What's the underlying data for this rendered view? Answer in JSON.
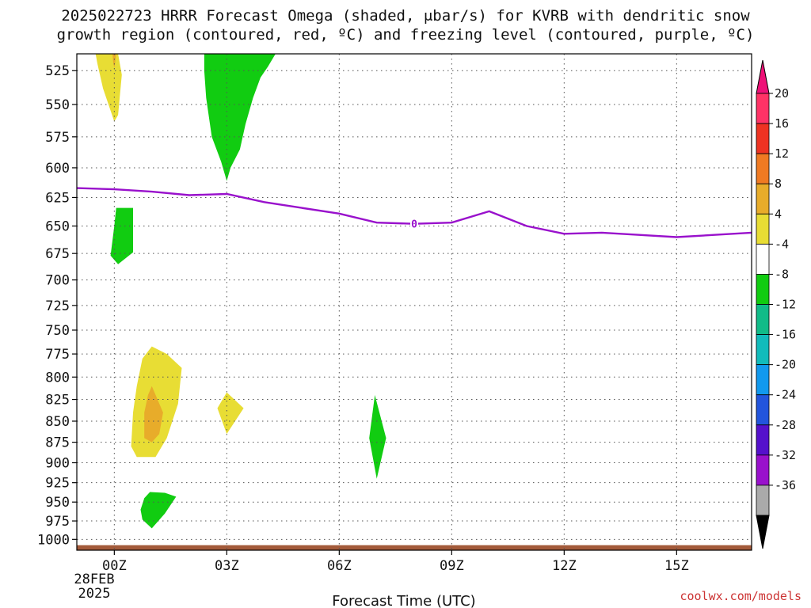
{
  "title": {
    "line1": "2025022723 HRRR Forecast Omega (shaded, μbar/s) for KVRB with dendritic snow",
    "line2": "growth region (contoured, red, ºC) and freezing level (contoured, purple, ºC)"
  },
  "xlabel": "Forecast Time (UTC)",
  "credit": "coolwx.com/models",
  "date_label": {
    "day": "28FEB",
    "year": "2025"
  },
  "chart_data": {
    "type": "heatmap",
    "title": "2025022723 HRRR Forecast Omega (shaded, μbar/s) for KVRB with dendritic snow growth region (contoured, red, ºC) and freezing level (contoured, purple, ºC)",
    "xlabel": "Forecast Time (UTC)",
    "ylabel": "",
    "x_unit": "forecast hour from 00Z 28FEB2025",
    "xlim": [
      -1,
      17
    ],
    "ylim_hPa": [
      1015,
      513
    ],
    "x_ticks": [
      {
        "hour": 0,
        "label": "00Z"
      },
      {
        "hour": 3,
        "label": "03Z"
      },
      {
        "hour": 6,
        "label": "06Z"
      },
      {
        "hour": 9,
        "label": "09Z"
      },
      {
        "hour": 12,
        "label": "12Z"
      },
      {
        "hour": 15,
        "label": "15Z"
      }
    ],
    "y_ticks": [
      525,
      550,
      575,
      600,
      625,
      650,
      675,
      700,
      725,
      750,
      775,
      800,
      825,
      850,
      875,
      900,
      925,
      950,
      975,
      1000
    ],
    "grid": true,
    "colorbar": {
      "levels": [
        20,
        16,
        12,
        8,
        4,
        -4,
        -8,
        -12,
        -16,
        -20,
        -24,
        -28,
        -32,
        -36
      ],
      "colors": [
        "#ff3366",
        "#ee3322",
        "#f07a22",
        "#e8ac2a",
        "#e8dd34",
        "#ffffff",
        "#11cc11",
        "#11bb88",
        "#11bbbb",
        "#1199ee",
        "#2255dd",
        "#5511cc",
        "#9911cc",
        "#aaaaaa"
      ],
      "top_arrow_color": "#ee1177",
      "bottom_arrow_color": "#000000"
    },
    "freezing_level": {
      "label": "0",
      "color": "#9911cc",
      "points": [
        [
          -1,
          617
        ],
        [
          0,
          618
        ],
        [
          1,
          620
        ],
        [
          2,
          623
        ],
        [
          3,
          622
        ],
        [
          4,
          629
        ],
        [
          5,
          634
        ],
        [
          6,
          639
        ],
        [
          7,
          647
        ],
        [
          8,
          648
        ],
        [
          9,
          647
        ],
        [
          10,
          637
        ],
        [
          11,
          650
        ],
        [
          12,
          657
        ],
        [
          13,
          656
        ],
        [
          14,
          658
        ],
        [
          15,
          660
        ],
        [
          16,
          658
        ],
        [
          17,
          656
        ]
      ]
    },
    "omega_regions": [
      {
        "level": 4,
        "color": "#e8dd34",
        "points": [
          [
            -0.5,
            513
          ],
          [
            0.1,
            513
          ],
          [
            0.2,
            528
          ],
          [
            0.1,
            558
          ],
          [
            0.0,
            563
          ],
          [
            -0.3,
            538
          ],
          [
            -0.45,
            520
          ]
        ]
      },
      {
        "level": 8,
        "color": "#e8ac2a",
        "points": [
          [
            -0.05,
            513
          ],
          [
            0.05,
            513
          ],
          [
            0.02,
            520
          ],
          [
            0.0,
            523
          ],
          [
            -0.03,
            519
          ]
        ]
      },
      {
        "level": -4,
        "color": "#11cc11",
        "points": [
          [
            2.4,
            513
          ],
          [
            4.3,
            513
          ],
          [
            4.1,
            522
          ],
          [
            3.9,
            530
          ],
          [
            3.7,
            545
          ],
          [
            3.5,
            565
          ],
          [
            3.35,
            585
          ],
          [
            3.1,
            600
          ],
          [
            3.0,
            611
          ],
          [
            2.85,
            595
          ],
          [
            2.6,
            575
          ],
          [
            2.45,
            545
          ],
          [
            2.4,
            525
          ]
        ]
      },
      {
        "level": -4,
        "color": "#11cc11",
        "points": [
          [
            0.05,
            634
          ],
          [
            0.5,
            634
          ],
          [
            0.5,
            674
          ],
          [
            0.1,
            685
          ],
          [
            -0.1,
            677
          ],
          [
            0.0,
            650
          ]
        ]
      },
      {
        "level": 4,
        "color": "#e8dd34",
        "points": [
          [
            1.0,
            767
          ],
          [
            1.4,
            775
          ],
          [
            1.8,
            790
          ],
          [
            1.7,
            830
          ],
          [
            1.4,
            870
          ],
          [
            1.1,
            893
          ],
          [
            0.6,
            893
          ],
          [
            0.45,
            880
          ],
          [
            0.5,
            840
          ],
          [
            0.6,
            810
          ],
          [
            0.75,
            780
          ]
        ]
      },
      {
        "level": 8,
        "color": "#e8ac2a",
        "points": [
          [
            1.0,
            810
          ],
          [
            1.3,
            840
          ],
          [
            1.2,
            865
          ],
          [
            1.0,
            875
          ],
          [
            0.8,
            870
          ],
          [
            0.8,
            840
          ],
          [
            0.9,
            820
          ]
        ]
      },
      {
        "level": 4,
        "color": "#e8dd34",
        "points": [
          [
            3.0,
            817
          ],
          [
            3.45,
            835
          ],
          [
            3.0,
            865
          ],
          [
            2.75,
            835
          ]
        ]
      },
      {
        "level": -4,
        "color": "#11cc11",
        "points": [
          [
            6.95,
            820
          ],
          [
            7.25,
            870
          ],
          [
            7.0,
            920
          ],
          [
            6.8,
            870
          ]
        ]
      },
      {
        "level": -4,
        "color": "#11cc11",
        "points": [
          [
            0.95,
            937
          ],
          [
            1.35,
            938
          ],
          [
            1.65,
            943
          ],
          [
            1.35,
            965
          ],
          [
            1.0,
            985
          ],
          [
            0.75,
            973
          ],
          [
            0.7,
            960
          ],
          [
            0.8,
            945
          ]
        ]
      }
    ],
    "surface_band": {
      "color": "#a35a3a",
      "top_hPa": 1008,
      "bottom_hPa": 1015
    }
  }
}
